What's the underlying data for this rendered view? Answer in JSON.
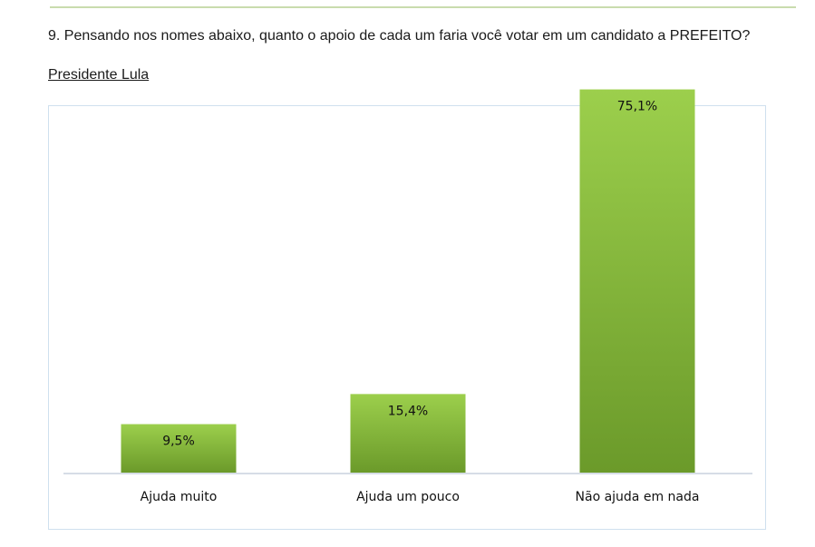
{
  "question": "9. Pensando nos nomes abaixo, quanto o apoio de cada um faria você votar em um candidato a PREFEITO?",
  "subtitle": "Presidente Lula",
  "chart_data": {
    "type": "bar",
    "categories": [
      "Ajuda muito",
      "Ajuda um pouco",
      "Não ajuda em nada"
    ],
    "values": [
      9.5,
      15.4,
      75.1
    ],
    "value_labels": [
      "9,5%",
      "15,4%",
      "75,1%"
    ],
    "title": "",
    "xlabel": "",
    "ylabel": "",
    "ylim": [
      0,
      80
    ],
    "grid": false,
    "legend": "none",
    "bar_color_top": "#9ccf4c",
    "bar_color_bottom": "#6b9a2a"
  }
}
